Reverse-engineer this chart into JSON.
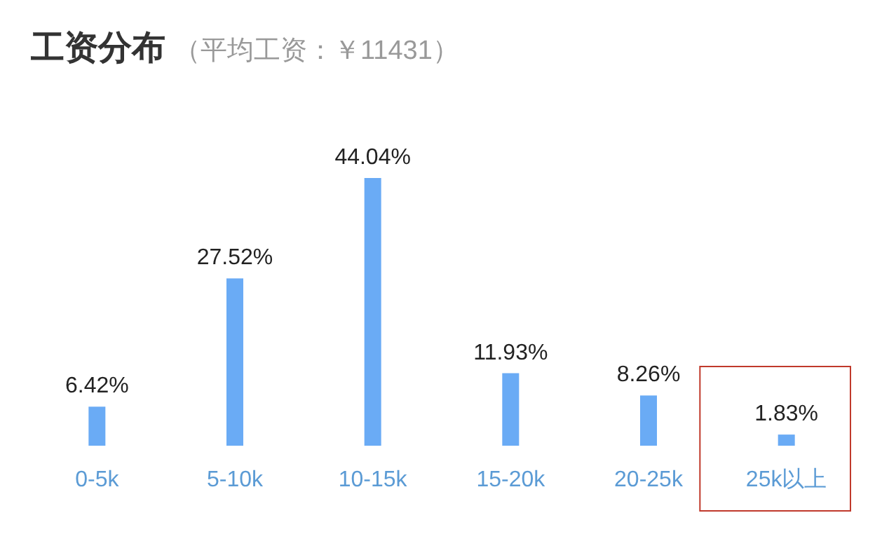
{
  "chart_data": {
    "type": "bar",
    "title": "工资分布",
    "subtitle": "（平均工资：￥11431）",
    "categories": [
      "0-5k",
      "5-10k",
      "10-15k",
      "15-20k",
      "20-25k",
      "25k以上"
    ],
    "values": [
      6.42,
      27.52,
      44.04,
      11.93,
      8.26,
      1.83
    ],
    "value_labels": [
      "6.42%",
      "27.52%",
      "44.04%",
      "11.93%",
      "8.26%",
      "1.83%"
    ],
    "color": "#6aabf5"
  }
}
